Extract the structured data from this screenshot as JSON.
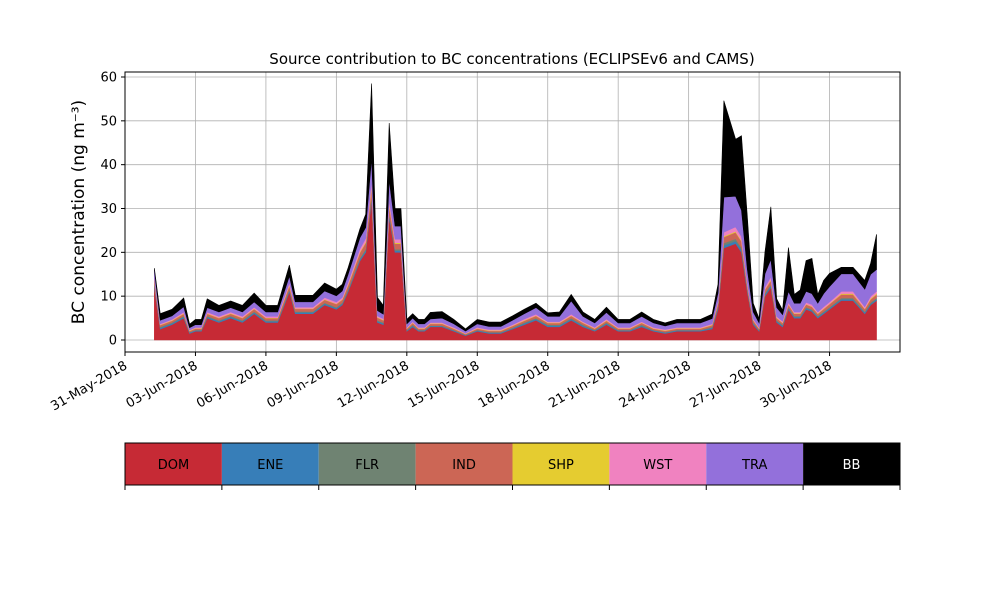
{
  "chart_data": {
    "type": "area",
    "title": "Source contribution to BC concentrations (ECLIPSEv6 and CAMS)",
    "ylabel": "BC concentration (ng m⁻³)",
    "xlabel": "",
    "x_range": [
      "2018-05-31",
      "2018-07-03"
    ],
    "ylim": [
      0,
      60
    ],
    "yticks": [
      0,
      10,
      20,
      30,
      40,
      50,
      60
    ],
    "xticks": [
      {
        "date": "2018-05-31",
        "label": "31-May-2018"
      },
      {
        "date": "2018-06-03",
        "label": "03-Jun-2018"
      },
      {
        "date": "2018-06-06",
        "label": "06-Jun-2018"
      },
      {
        "date": "2018-06-09",
        "label": "09-Jun-2018"
      },
      {
        "date": "2018-06-12",
        "label": "12-Jun-2018"
      },
      {
        "date": "2018-06-15",
        "label": "15-Jun-2018"
      },
      {
        "date": "2018-06-18",
        "label": "18-Jun-2018"
      },
      {
        "date": "2018-06-21",
        "label": "21-Jun-2018"
      },
      {
        "date": "2018-06-24",
        "label": "24-Jun-2018"
      },
      {
        "date": "2018-06-27",
        "label": "27-Jun-2018"
      },
      {
        "date": "2018-06-30",
        "label": "30-Jun-2018"
      }
    ],
    "grid": true,
    "stacked": true,
    "x": [
      "2018-06-01T06:00",
      "2018-06-01T12:00",
      "2018-06-02T00:00",
      "2018-06-02T12:00",
      "2018-06-02T18:00",
      "2018-06-03T00:00",
      "2018-06-03T06:00",
      "2018-06-03T12:00",
      "2018-06-04T00:00",
      "2018-06-04T12:00",
      "2018-06-05T00:00",
      "2018-06-05T12:00",
      "2018-06-06T00:00",
      "2018-06-06T12:00",
      "2018-06-07T00:00",
      "2018-06-07T06:00",
      "2018-06-07T12:00",
      "2018-06-08T00:00",
      "2018-06-08T12:00",
      "2018-06-09T00:00",
      "2018-06-09T06:00",
      "2018-06-09T12:00",
      "2018-06-10T00:00",
      "2018-06-10T06:00",
      "2018-06-10T12:00",
      "2018-06-10T18:00",
      "2018-06-11T00:00",
      "2018-06-11T06:00",
      "2018-06-11T12:00",
      "2018-06-11T18:00",
      "2018-06-12T00:00",
      "2018-06-12T06:00",
      "2018-06-12T12:00",
      "2018-06-12T18:00",
      "2018-06-13T00:00",
      "2018-06-13T12:00",
      "2018-06-14T00:00",
      "2018-06-14T12:00",
      "2018-06-15T00:00",
      "2018-06-15T12:00",
      "2018-06-16T00:00",
      "2018-06-16T12:00",
      "2018-06-17T00:00",
      "2018-06-17T12:00",
      "2018-06-18T00:00",
      "2018-06-18T12:00",
      "2018-06-19T00:00",
      "2018-06-19T12:00",
      "2018-06-20T00:00",
      "2018-06-20T12:00",
      "2018-06-21T00:00",
      "2018-06-21T12:00",
      "2018-06-22T00:00",
      "2018-06-22T12:00",
      "2018-06-23T00:00",
      "2018-06-23T12:00",
      "2018-06-24T00:00",
      "2018-06-24T12:00",
      "2018-06-25T00:00",
      "2018-06-25T06:00",
      "2018-06-25T12:00",
      "2018-06-26T00:00",
      "2018-06-26T06:00",
      "2018-06-26T12:00",
      "2018-06-26T18:00",
      "2018-06-27T00:00",
      "2018-06-27T06:00",
      "2018-06-27T12:00",
      "2018-06-27T18:00",
      "2018-06-28T00:00",
      "2018-06-28T06:00",
      "2018-06-28T12:00",
      "2018-06-28T18:00",
      "2018-06-29T00:00",
      "2018-06-29T06:00",
      "2018-06-29T12:00",
      "2018-06-29T18:00",
      "2018-06-30T00:00",
      "2018-06-30T12:00",
      "2018-07-01T00:00",
      "2018-07-01T12:00",
      "2018-07-01T18:00",
      "2018-07-02T00:00"
    ],
    "series": [
      {
        "name": "DOM",
        "color": "#c62a35",
        "values": [
          12,
          2.5,
          3.5,
          5,
          1.5,
          2,
          2,
          5,
          4,
          5,
          4,
          6,
          4,
          4,
          11,
          6,
          6,
          6,
          8,
          7,
          8,
          11,
          18,
          20,
          32,
          4,
          3.5,
          28,
          20,
          20,
          2,
          3,
          2,
          2,
          3,
          3,
          2,
          1,
          2,
          1.5,
          1.5,
          2.5,
          3.5,
          4.5,
          3,
          3,
          4.5,
          3,
          2,
          3.5,
          2,
          2,
          3,
          2,
          1.5,
          2,
          2,
          2,
          2.5,
          7,
          21,
          22,
          20,
          11,
          3.5,
          2,
          10,
          12,
          4,
          3,
          7,
          5,
          5,
          7,
          6.5,
          5,
          6,
          7,
          9,
          9,
          6,
          8,
          9
        ]
      },
      {
        "name": "ENE",
        "color": "#377eb8",
        "values": [
          0.5,
          0.3,
          0.3,
          0.3,
          0.2,
          0.2,
          0.2,
          0.3,
          0.3,
          0.3,
          0.3,
          0.3,
          0.3,
          0.3,
          0.3,
          0.3,
          0.3,
          0.3,
          0.3,
          0.3,
          0.3,
          0.3,
          0.4,
          0.4,
          0.5,
          0.3,
          0.3,
          0.5,
          0.4,
          0.4,
          0.2,
          0.3,
          0.2,
          0.2,
          0.2,
          0.2,
          0.2,
          0.1,
          0.2,
          0.2,
          0.2,
          0.2,
          0.3,
          0.3,
          0.3,
          0.3,
          0.3,
          0.3,
          0.2,
          0.3,
          0.2,
          0.2,
          0.3,
          0.2,
          0.2,
          0.2,
          0.2,
          0.2,
          0.3,
          0.4,
          0.6,
          0.6,
          0.6,
          0.4,
          0.3,
          0.2,
          0.4,
          0.4,
          0.3,
          0.3,
          0.3,
          0.3,
          0.3,
          0.3,
          0.3,
          0.3,
          0.3,
          0.3,
          0.3,
          0.3,
          0.3,
          0.3,
          0.3
        ]
      },
      {
        "name": "FLR",
        "color": "#6f8372",
        "values": [
          0.3,
          0.2,
          0.2,
          0.2,
          0.1,
          0.1,
          0.1,
          0.2,
          0.2,
          0.2,
          0.2,
          0.2,
          0.2,
          0.2,
          0.3,
          0.2,
          0.2,
          0.2,
          0.2,
          0.2,
          0.2,
          0.3,
          0.3,
          0.4,
          0.5,
          0.2,
          0.2,
          0.4,
          0.3,
          0.3,
          0.1,
          0.2,
          0.1,
          0.1,
          0.1,
          0.1,
          0.1,
          0.1,
          0.1,
          0.1,
          0.1,
          0.1,
          0.2,
          0.2,
          0.2,
          0.2,
          0.2,
          0.2,
          0.1,
          0.2,
          0.1,
          0.1,
          0.2,
          0.1,
          0.1,
          0.1,
          0.1,
          0.1,
          0.2,
          0.3,
          0.5,
          0.5,
          0.5,
          0.3,
          0.2,
          0.1,
          0.3,
          0.3,
          0.2,
          0.2,
          0.2,
          0.2,
          0.2,
          0.2,
          0.2,
          0.2,
          0.2,
          0.2,
          0.3,
          0.3,
          0.2,
          0.3,
          0.3
        ]
      },
      {
        "name": "IND",
        "color": "#cc6655",
        "values": [
          0.8,
          0.4,
          0.4,
          0.5,
          0.3,
          0.3,
          0.3,
          0.5,
          0.5,
          0.5,
          0.5,
          0.6,
          0.5,
          0.5,
          0.8,
          0.6,
          0.6,
          0.6,
          0.7,
          0.7,
          0.7,
          0.9,
          1.2,
          1.4,
          2,
          0.6,
          0.5,
          1.8,
          1.3,
          1.3,
          0.3,
          0.4,
          0.3,
          0.3,
          0.4,
          0.4,
          0.3,
          0.2,
          0.3,
          0.3,
          0.3,
          0.4,
          0.4,
          0.5,
          0.4,
          0.4,
          0.5,
          0.4,
          0.3,
          0.4,
          0.3,
          0.3,
          0.4,
          0.3,
          0.3,
          0.3,
          0.3,
          0.3,
          0.4,
          0.7,
          1.4,
          1.5,
          1.4,
          0.8,
          0.5,
          0.3,
          0.8,
          0.9,
          0.5,
          0.4,
          0.6,
          0.5,
          0.5,
          0.6,
          0.6,
          0.5,
          0.6,
          0.7,
          0.8,
          0.8,
          0.6,
          0.7,
          0.8
        ]
      },
      {
        "name": "SHP",
        "color": "#e5cc30",
        "values": [
          0.2,
          0.1,
          0.1,
          0.1,
          0.1,
          0.1,
          0.1,
          0.1,
          0.1,
          0.1,
          0.1,
          0.1,
          0.1,
          0.1,
          0.2,
          0.1,
          0.1,
          0.1,
          0.1,
          0.1,
          0.1,
          0.2,
          0.2,
          0.2,
          0.3,
          0.1,
          0.1,
          0.3,
          0.2,
          0.2,
          0.1,
          0.1,
          0.1,
          0.1,
          0.1,
          0.1,
          0.1,
          0.05,
          0.1,
          0.1,
          0.1,
          0.1,
          0.1,
          0.1,
          0.1,
          0.1,
          0.1,
          0.1,
          0.1,
          0.1,
          0.1,
          0.1,
          0.1,
          0.1,
          0.1,
          0.1,
          0.1,
          0.1,
          0.1,
          0.1,
          0.2,
          0.2,
          0.2,
          0.1,
          0.1,
          0.1,
          0.1,
          0.2,
          0.1,
          0.1,
          0.1,
          0.1,
          0.1,
          0.1,
          0.1,
          0.1,
          0.1,
          0.1,
          0.2,
          0.2,
          0.1,
          0.2,
          0.2
        ]
      },
      {
        "name": "WST",
        "color": "#f082c0",
        "values": [
          0.4,
          0.2,
          0.2,
          0.3,
          0.1,
          0.2,
          0.2,
          0.3,
          0.3,
          0.3,
          0.3,
          0.3,
          0.3,
          0.3,
          0.5,
          0.3,
          0.3,
          0.3,
          0.4,
          0.4,
          0.4,
          0.5,
          0.7,
          0.8,
          1.2,
          0.3,
          0.3,
          1,
          0.8,
          0.8,
          0.2,
          0.2,
          0.2,
          0.2,
          0.2,
          0.2,
          0.2,
          0.1,
          0.2,
          0.2,
          0.2,
          0.2,
          0.3,
          0.3,
          0.2,
          0.2,
          0.3,
          0.2,
          0.2,
          0.3,
          0.2,
          0.2,
          0.2,
          0.2,
          0.2,
          0.2,
          0.2,
          0.2,
          0.2,
          0.4,
          0.9,
          1,
          0.9,
          0.5,
          0.3,
          0.2,
          0.5,
          0.6,
          0.3,
          0.3,
          0.4,
          0.3,
          0.3,
          0.4,
          0.4,
          0.3,
          0.4,
          0.4,
          0.5,
          0.5,
          0.4,
          0.5,
          0.5
        ]
      },
      {
        "name": "TRA",
        "color": "#9370db",
        "values": [
          1.8,
          0.8,
          0.8,
          1.2,
          0.5,
          0.6,
          0.6,
          1,
          1,
          1,
          1,
          1.2,
          1,
          1,
          1.5,
          1.2,
          1.2,
          1.2,
          1.5,
          1.4,
          1.5,
          1.8,
          2.5,
          2.5,
          5,
          1.2,
          1,
          4.5,
          3,
          3,
          0.8,
          0.8,
          0.8,
          0.8,
          0.8,
          1,
          0.8,
          0.5,
          0.8,
          0.7,
          0.7,
          1,
          1.2,
          1.5,
          1.2,
          1.2,
          3,
          1.2,
          1,
          1.5,
          1,
          1,
          1.2,
          1,
          0.8,
          1,
          1,
          1,
          1.2,
          1.8,
          8,
          7,
          6,
          3,
          1.5,
          1,
          3,
          4,
          2,
          1.5,
          2.5,
          2,
          2,
          2.5,
          2.5,
          2,
          3,
          3.5,
          4,
          4,
          4,
          5,
          5
        ]
      },
      {
        "name": "BB",
        "color": "#000000",
        "values": [
          0.4,
          1.5,
          1.5,
          2,
          0.8,
          1.2,
          1.2,
          2,
          1.5,
          1.5,
          1.5,
          2,
          1.5,
          1.5,
          2.5,
          1.5,
          1.5,
          1.5,
          1.8,
          1.5,
          1.5,
          1.5,
          2,
          3,
          17,
          3,
          2,
          13,
          4,
          4,
          1,
          1,
          1,
          1,
          1.5,
          1.5,
          1,
          0.5,
          1,
          1,
          1,
          1,
          1,
          1,
          0.8,
          1,
          1.5,
          1,
          0.8,
          1.2,
          0.8,
          0.8,
          1,
          0.8,
          0.7,
          0.8,
          0.8,
          0.8,
          1,
          2,
          22,
          13,
          17,
          12,
          2,
          1,
          5,
          12,
          2,
          1,
          10,
          2,
          3,
          7,
          8,
          2,
          3,
          3,
          1.5,
          1.5,
          2,
          2.5,
          8
        ]
      }
    ]
  }
}
